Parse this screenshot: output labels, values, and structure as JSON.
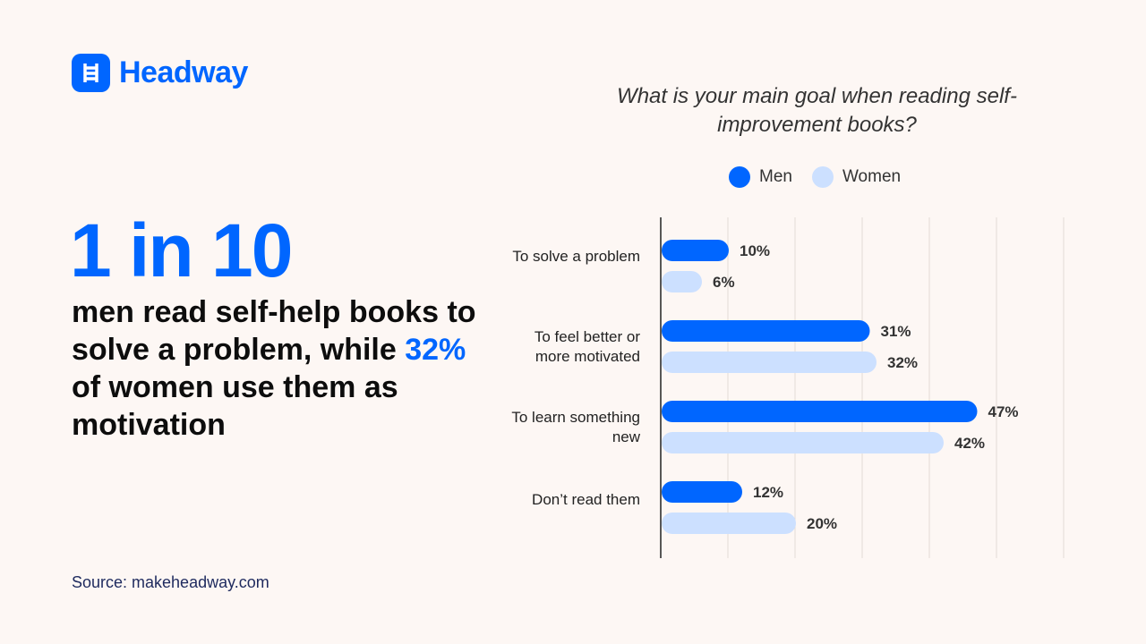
{
  "brand": {
    "name": "Headway"
  },
  "headline": {
    "stat": "1 in 10",
    "line_a": "men read self-help books to solve a problem, while ",
    "highlight": "32%",
    "line_b": " of women use them as motivation"
  },
  "source": "Source: makeheadway.com",
  "colors": {
    "men": "#0066ff",
    "women": "#cce0ff",
    "grid": "#e2dbd6"
  },
  "chart_data": {
    "type": "bar",
    "orientation": "horizontal",
    "title": "What is your main goal when reading self-improvement books?",
    "categories": [
      "To solve a problem",
      "To feel better or more motivated",
      "To learn something new",
      "Don’t read them"
    ],
    "series": [
      {
        "name": "Men",
        "values": [
          10,
          31,
          47,
          12
        ]
      },
      {
        "name": "Women",
        "values": [
          6,
          32,
          42,
          20
        ]
      }
    ],
    "xlim": [
      0,
      60
    ],
    "grid": true,
    "legend": "top",
    "value_suffix": "%"
  }
}
